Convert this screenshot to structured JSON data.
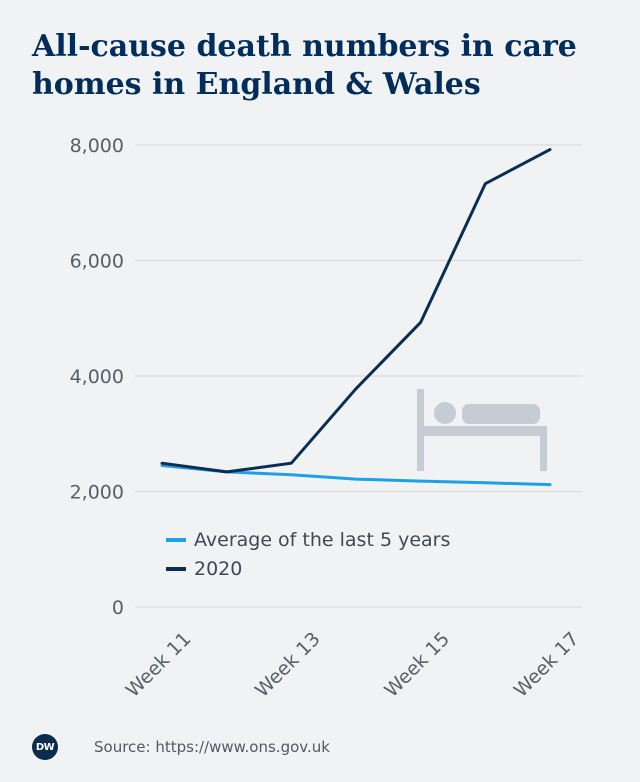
{
  "title": "All-cause death numbers in care homes in England & Wales",
  "source": "Source: https://www.ons.gov.uk",
  "logo_text": "DW",
  "chart_data": {
    "type": "line",
    "x": [
      11,
      12,
      13,
      14,
      15,
      16,
      17
    ],
    "x_tick_values": [
      11,
      13,
      15,
      17
    ],
    "x_tick_labels": [
      "Week 11",
      "Week 13",
      "Week 15",
      "Week 17"
    ],
    "y_ticks": [
      0,
      2000,
      4000,
      6000,
      8000
    ],
    "y_tick_labels": [
      "0",
      "2,000",
      "4,000",
      "6,000",
      "8,000"
    ],
    "ylim": [
      0,
      8000
    ],
    "grid": true,
    "legend_position": "lower-middle",
    "series": [
      {
        "name": "Average of the last 5 years",
        "color": "#1ea0e6",
        "values": [
          2450,
          2340,
          2290,
          2215,
          2180,
          2150,
          2120
        ]
      },
      {
        "name": "2020",
        "color": "#0a2d52",
        "values": [
          2490,
          2340,
          2490,
          3780,
          4930,
          7330,
          7920
        ]
      }
    ],
    "decoration_icon": "bed-icon"
  }
}
